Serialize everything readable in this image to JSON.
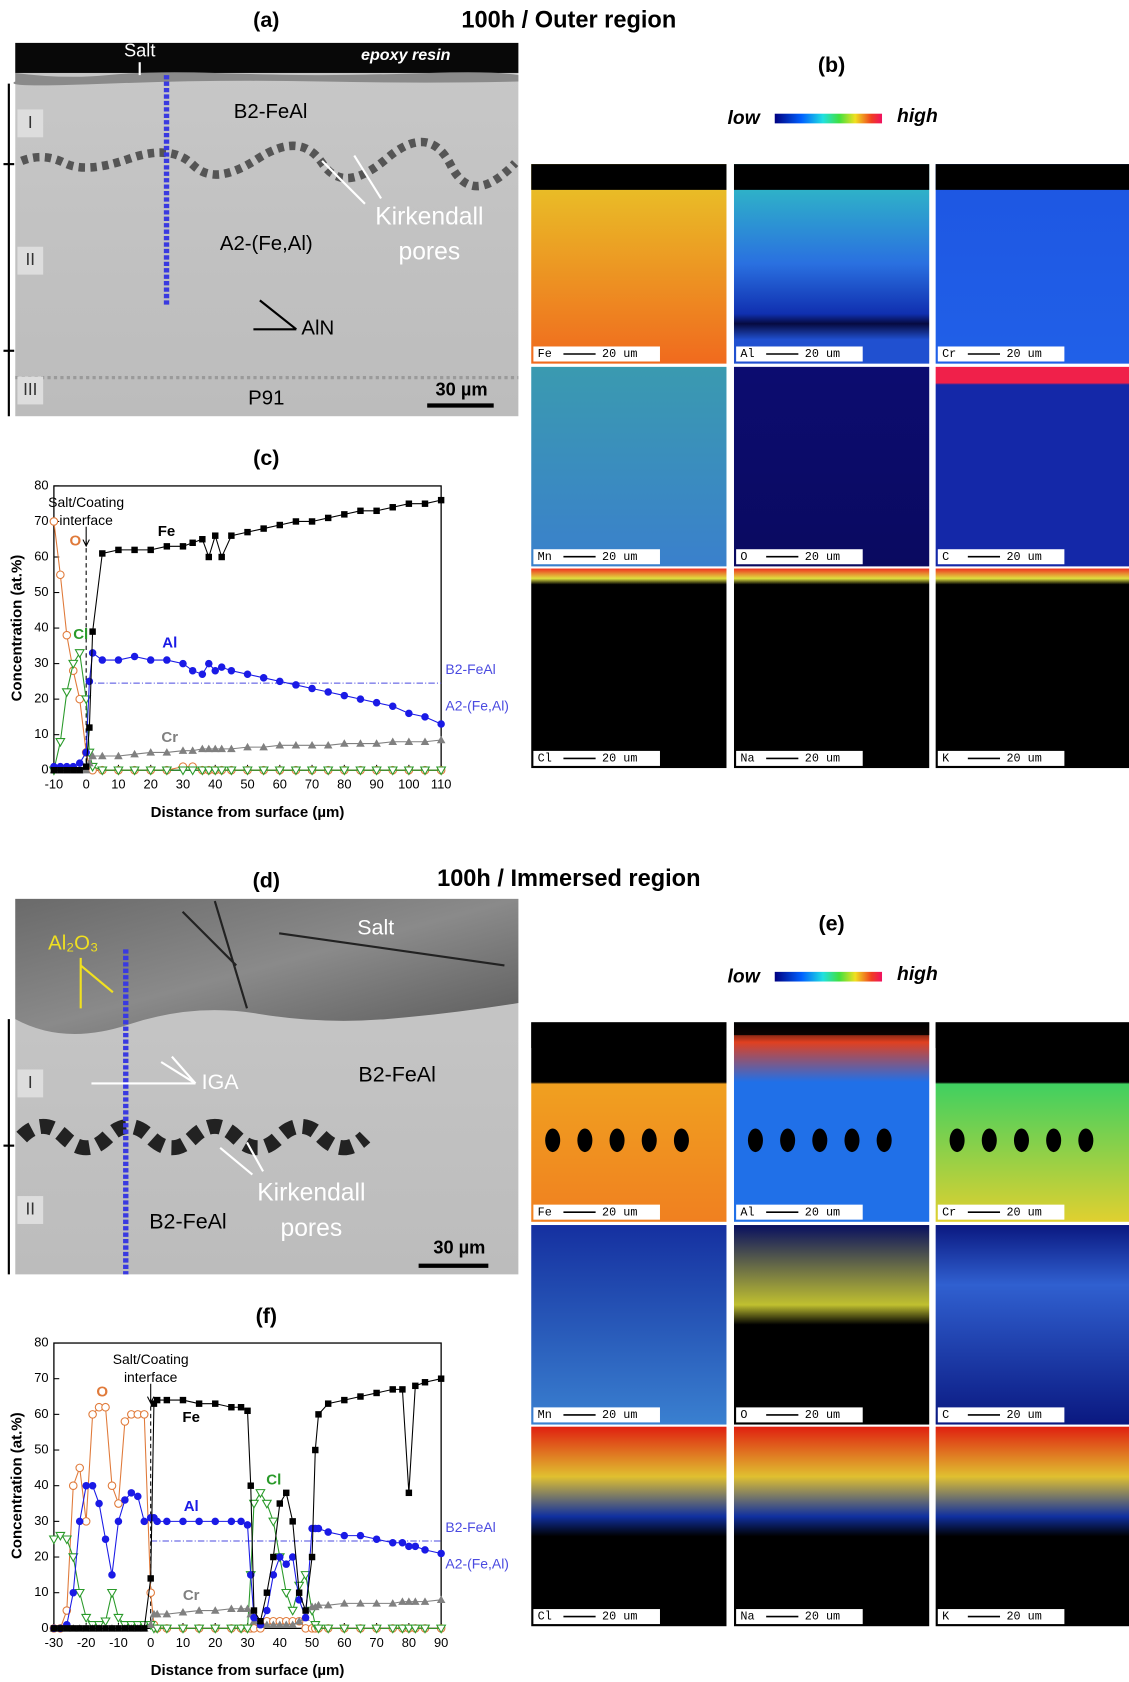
{
  "figure": {
    "outer_title": "100h / Outer region",
    "immersed_title": "100h / Immersed region",
    "panels": {
      "a": "(a)",
      "b": "(b)",
      "c": "(c)",
      "d": "(d)",
      "e": "(e)",
      "f": "(f)"
    },
    "micrograph_a": {
      "salt": "Salt",
      "epoxy": "epoxy resin",
      "b2": "B2-FeAl",
      "pores": [
        "Kirkendall",
        "pores"
      ],
      "a2": "A2-(Fe,Al)",
      "aln": "AlN",
      "substrate": "P91",
      "scale": "30 µm",
      "zones": [
        "I",
        "II",
        "III"
      ]
    },
    "micrograph_d": {
      "salt": "Salt",
      "oxide": "Al₂O₃",
      "iga": "IGA",
      "b2_top": "B2-FeAl",
      "pores": [
        "Kirkendall",
        "pores"
      ],
      "b2_bottom": "B2-FeAl",
      "scale": "30 µm",
      "zones": [
        "I",
        "II"
      ]
    },
    "colorbar": {
      "low": "low",
      "high": "high"
    },
    "maps": {
      "elements": [
        "Fe",
        "Al",
        "Cr",
        "Mn",
        "O",
        "C",
        "Cl",
        "Na",
        "K"
      ],
      "scale": "20 um"
    }
  },
  "chart_data": [
    {
      "type": "line",
      "xlabel": "Distance from surface (µm)",
      "ylabel": "Concentration (at.%)",
      "xlim": [
        -10,
        110
      ],
      "xticks": [
        -10,
        0,
        10,
        20,
        30,
        40,
        50,
        60,
        70,
        80,
        90,
        100,
        110
      ],
      "ylim": [
        0,
        80
      ],
      "yticks": [
        0,
        10,
        20,
        30,
        40,
        50,
        60,
        70,
        80
      ],
      "interface_label": [
        "Salt/Coating",
        "interface"
      ],
      "interface_x": 0,
      "hline": 24.5,
      "hline_color": "#4a4ae0",
      "phase_labels": [
        "B2-FeAl",
        "A2-(Fe,Al)"
      ],
      "x": [
        -10,
        -8,
        -6,
        -4,
        -2,
        0,
        1,
        2,
        5,
        10,
        15,
        20,
        25,
        30,
        33,
        36,
        38,
        40,
        42,
        45,
        50,
        55,
        60,
        65,
        70,
        75,
        80,
        85,
        90,
        95,
        100,
        105,
        110
      ],
      "series": [
        {
          "name": "Fe",
          "color": "#000000",
          "marker": "square",
          "values": [
            0,
            0,
            0,
            0,
            0,
            1,
            12,
            39,
            61,
            62,
            62,
            62,
            63,
            63,
            64,
            65,
            60,
            66,
            60,
            66,
            67,
            68,
            69,
            70,
            70,
            71,
            72,
            73,
            73,
            74,
            75,
            75,
            76
          ]
        },
        {
          "name": "Al",
          "color": "#1a1ae6",
          "marker": "circle",
          "values": [
            1,
            1,
            1,
            1,
            2,
            5,
            25,
            33,
            31,
            31,
            32,
            31,
            31,
            30,
            28,
            27,
            30,
            28,
            29,
            28,
            27,
            26,
            25,
            24,
            23,
            22,
            21,
            20,
            19,
            18,
            16,
            15,
            13
          ]
        },
        {
          "name": "Cr",
          "color": "#808080",
          "marker": "triangle",
          "values": [
            0,
            0,
            0,
            0,
            0,
            0,
            2,
            4,
            4,
            4,
            4.5,
            5,
            5,
            5.5,
            5.5,
            6,
            6,
            6,
            6,
            6,
            6.5,
            6.5,
            7,
            7,
            7,
            7,
            7.5,
            7.5,
            7.5,
            8,
            8,
            8,
            8.5
          ]
        },
        {
          "name": "O",
          "color": "#e07a3a",
          "marker": "circle-open",
          "values": [
            70,
            55,
            38,
            28,
            20,
            5,
            1,
            0,
            0,
            0,
            0,
            0,
            0,
            1,
            1,
            0,
            0,
            0,
            0,
            0,
            0,
            0,
            0,
            0,
            0,
            0,
            0,
            0,
            0,
            0,
            0,
            0,
            0
          ]
        },
        {
          "name": "Cl",
          "color": "#2a9a2a",
          "marker": "triangle-open",
          "values": [
            0,
            8,
            22,
            30,
            33,
            20,
            5,
            1,
            0,
            0,
            0,
            0,
            0,
            0,
            0,
            0,
            0,
            0,
            0,
            0,
            0,
            0,
            0,
            0,
            0,
            0,
            0,
            0,
            0,
            0,
            0,
            0,
            0
          ]
        }
      ]
    },
    {
      "type": "line",
      "xlabel": "Distance from surface (µm)",
      "ylabel": "Concentration (at.%)",
      "xlim": [
        -30,
        90
      ],
      "xticks": [
        -30,
        -20,
        -10,
        0,
        10,
        20,
        30,
        40,
        50,
        60,
        70,
        80,
        90
      ],
      "ylim": [
        0,
        80
      ],
      "yticks": [
        0,
        10,
        20,
        30,
        40,
        50,
        60,
        70,
        80
      ],
      "interface_label": [
        "Salt/Coating",
        "interface"
      ],
      "interface_x": 0,
      "hline": 24.5,
      "hline_color": "#4a4ae0",
      "phase_labels": [
        "B2-FeAl",
        "A2-(Fe,Al)"
      ],
      "x": [
        -30,
        -28,
        -26,
        -24,
        -22,
        -20,
        -18,
        -16,
        -14,
        -12,
        -10,
        -8,
        -6,
        -4,
        -2,
        0,
        1,
        2,
        5,
        10,
        15,
        20,
        25,
        28,
        30,
        31,
        32,
        34,
        36,
        38,
        40,
        42,
        44,
        46,
        48,
        50,
        51,
        52,
        55,
        60,
        65,
        70,
        75,
        78,
        80,
        82,
        85,
        90
      ],
      "series": [
        {
          "name": "Fe",
          "color": "#000000",
          "marker": "square",
          "values": [
            0,
            0,
            0,
            0,
            0,
            0,
            0,
            0,
            0,
            0,
            0,
            0,
            0,
            0,
            0,
            14,
            63,
            64,
            64,
            64,
            63,
            63,
            62,
            62,
            61,
            40,
            5,
            2,
            10,
            20,
            35,
            38,
            30,
            10,
            5,
            20,
            50,
            60,
            63,
            64,
            65,
            66,
            67,
            67,
            38,
            68,
            69,
            70
          ]
        },
        {
          "name": "Al",
          "color": "#1a1ae6",
          "marker": "circle",
          "values": [
            0,
            0,
            1,
            10,
            30,
            40,
            40,
            35,
            25,
            15,
            30,
            36,
            38,
            37,
            30,
            31,
            31,
            30,
            30,
            30,
            30,
            30,
            30,
            30,
            29,
            15,
            3,
            1,
            5,
            15,
            20,
            18,
            20,
            8,
            3,
            28,
            28,
            28,
            27,
            26,
            26,
            25,
            24,
            24,
            23,
            23,
            22,
            21
          ]
        },
        {
          "name": "Cr",
          "color": "#808080",
          "marker": "triangle",
          "values": [
            0,
            0,
            0,
            0,
            0,
            0,
            0,
            0,
            0,
            0,
            0,
            0,
            0,
            0,
            0,
            1,
            4,
            4,
            4,
            4.5,
            5,
            5,
            5.5,
            5.5,
            5.5,
            4,
            2,
            1,
            1,
            1,
            1,
            1,
            1,
            2,
            3,
            6,
            6,
            6.5,
            6.5,
            7,
            7,
            7,
            7,
            7.5,
            7.5,
            7.5,
            7.5,
            8
          ]
        },
        {
          "name": "O",
          "color": "#e07a3a",
          "marker": "circle-open",
          "values": [
            0,
            0,
            5,
            40,
            45,
            30,
            60,
            62,
            62,
            40,
            35,
            58,
            60,
            60,
            60,
            10,
            1,
            0,
            0,
            0,
            0,
            0,
            0,
            0,
            0,
            0,
            0,
            0,
            2,
            2,
            2,
            2,
            2,
            2,
            0,
            0,
            0,
            0,
            0,
            0,
            0,
            0,
            0,
            0,
            0,
            0,
            0,
            0
          ]
        },
        {
          "name": "Cl",
          "color": "#2a9a2a",
          "marker": "triangle-open",
          "values": [
            25,
            26,
            25,
            20,
            10,
            3,
            1,
            1,
            2,
            10,
            3,
            1,
            1,
            1,
            1,
            1,
            0,
            0,
            0,
            0,
            0,
            0,
            0,
            0,
            0,
            15,
            35,
            38,
            35,
            30,
            20,
            10,
            5,
            12,
            15,
            5,
            1,
            0,
            0,
            0,
            0,
            0,
            0,
            0,
            0,
            0,
            0,
            0
          ]
        }
      ]
    }
  ]
}
